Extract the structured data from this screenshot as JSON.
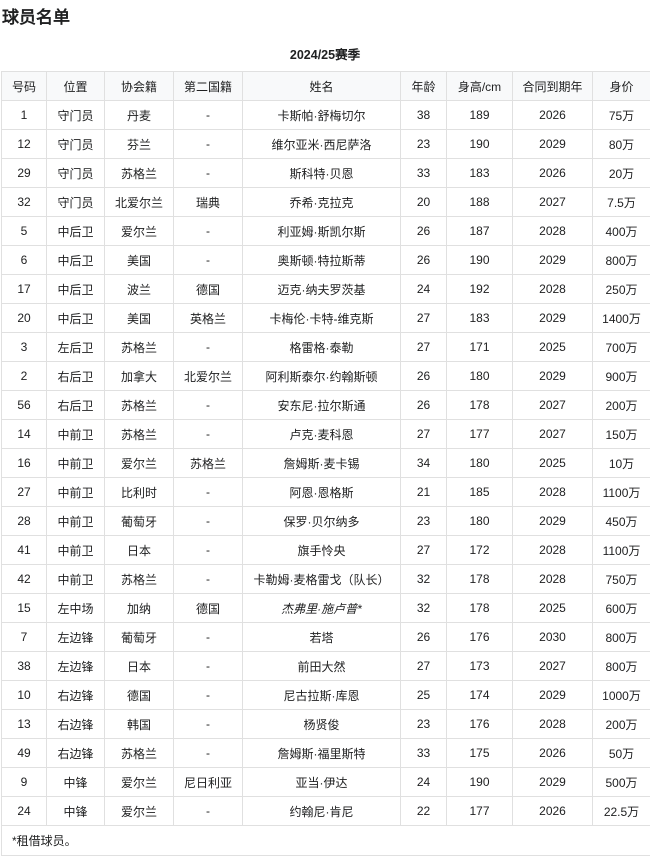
{
  "title": "球员名单",
  "caption": "2024/25赛季",
  "columns": [
    "号码",
    "位置",
    "协会籍",
    "第二国籍",
    "姓名",
    "年龄",
    "身高/cm",
    "合同到期年",
    "身价"
  ],
  "rows": [
    {
      "no": "1",
      "pos": "守门员",
      "nat": "丹麦",
      "nat2": "-",
      "name": "卡斯帕·舒梅切尔",
      "age": "38",
      "height": "189",
      "contract": "2026",
      "value": "75万"
    },
    {
      "no": "12",
      "pos": "守门员",
      "nat": "芬兰",
      "nat2": "-",
      "name": "维尔亚米·西尼萨洛",
      "age": "23",
      "height": "190",
      "contract": "2029",
      "value": "80万"
    },
    {
      "no": "29",
      "pos": "守门员",
      "nat": "苏格兰",
      "nat2": "-",
      "name": "斯科特·贝恩",
      "age": "33",
      "height": "183",
      "contract": "2026",
      "value": "20万"
    },
    {
      "no": "32",
      "pos": "守门员",
      "nat": "北爱尔兰",
      "nat2": "瑞典",
      "name": "乔希·克拉克",
      "age": "20",
      "height": "188",
      "contract": "2027",
      "value": "7.5万"
    },
    {
      "no": "5",
      "pos": "中后卫",
      "nat": "爱尔兰",
      "nat2": "-",
      "name": "利亚姆·斯凯尔斯",
      "age": "26",
      "height": "187",
      "contract": "2028",
      "value": "400万"
    },
    {
      "no": "6",
      "pos": "中后卫",
      "nat": "美国",
      "nat2": "-",
      "name": "奥斯顿·特拉斯蒂",
      "age": "26",
      "height": "190",
      "contract": "2029",
      "value": "800万"
    },
    {
      "no": "17",
      "pos": "中后卫",
      "nat": "波兰",
      "nat2": "德国",
      "name": "迈克·纳夫罗茨基",
      "age": "24",
      "height": "192",
      "contract": "2028",
      "value": "250万"
    },
    {
      "no": "20",
      "pos": "中后卫",
      "nat": "美国",
      "nat2": "英格兰",
      "name": "卡梅伦·卡特-维克斯",
      "age": "27",
      "height": "183",
      "contract": "2029",
      "value": "1400万"
    },
    {
      "no": "3",
      "pos": "左后卫",
      "nat": "苏格兰",
      "nat2": "-",
      "name": "格雷格·泰勒",
      "age": "27",
      "height": "171",
      "contract": "2025",
      "value": "700万"
    },
    {
      "no": "2",
      "pos": "右后卫",
      "nat": "加拿大",
      "nat2": "北爱尔兰",
      "name": "阿利斯泰尔·约翰斯顿",
      "age": "26",
      "height": "180",
      "contract": "2029",
      "value": "900万"
    },
    {
      "no": "56",
      "pos": "右后卫",
      "nat": "苏格兰",
      "nat2": "-",
      "name": "安东尼·拉尔斯通",
      "age": "26",
      "height": "178",
      "contract": "2027",
      "value": "200万"
    },
    {
      "no": "14",
      "pos": "中前卫",
      "nat": "苏格兰",
      "nat2": "-",
      "name": "卢克·麦科恩",
      "age": "27",
      "height": "177",
      "contract": "2027",
      "value": "150万"
    },
    {
      "no": "16",
      "pos": "中前卫",
      "nat": "爱尔兰",
      "nat2": "苏格兰",
      "name": "詹姆斯·麦卡锡",
      "age": "34",
      "height": "180",
      "contract": "2025",
      "value": "10万"
    },
    {
      "no": "27",
      "pos": "中前卫",
      "nat": "比利时",
      "nat2": "-",
      "name": "阿恩·恩格斯",
      "age": "21",
      "height": "185",
      "contract": "2028",
      "value": "1100万"
    },
    {
      "no": "28",
      "pos": "中前卫",
      "nat": "葡萄牙",
      "nat2": "-",
      "name": "保罗·贝尔纳多",
      "age": "23",
      "height": "180",
      "contract": "2029",
      "value": "450万"
    },
    {
      "no": "41",
      "pos": "中前卫",
      "nat": "日本",
      "nat2": "-",
      "name": "旗手怜央",
      "age": "27",
      "height": "172",
      "contract": "2028",
      "value": "1100万"
    },
    {
      "no": "42",
      "pos": "中前卫",
      "nat": "苏格兰",
      "nat2": "-",
      "name": "卡勒姆·麦格雷戈（队长）",
      "age": "32",
      "height": "178",
      "contract": "2028",
      "value": "750万"
    },
    {
      "no": "15",
      "pos": "左中场",
      "nat": "加纳",
      "nat2": "德国",
      "name": "杰弗里·施卢普*",
      "age": "32",
      "height": "178",
      "contract": "2025",
      "value": "600万",
      "loan": true
    },
    {
      "no": "7",
      "pos": "左边锋",
      "nat": "葡萄牙",
      "nat2": "-",
      "name": "若塔",
      "age": "26",
      "height": "176",
      "contract": "2030",
      "value": "800万"
    },
    {
      "no": "38",
      "pos": "左边锋",
      "nat": "日本",
      "nat2": "-",
      "name": "前田大然",
      "age": "27",
      "height": "173",
      "contract": "2027",
      "value": "800万"
    },
    {
      "no": "10",
      "pos": "右边锋",
      "nat": "德国",
      "nat2": "-",
      "name": "尼古拉斯·库恩",
      "age": "25",
      "height": "174",
      "contract": "2029",
      "value": "1000万"
    },
    {
      "no": "13",
      "pos": "右边锋",
      "nat": "韩国",
      "nat2": "-",
      "name": "杨贤俊",
      "age": "23",
      "height": "176",
      "contract": "2028",
      "value": "200万"
    },
    {
      "no": "49",
      "pos": "右边锋",
      "nat": "苏格兰",
      "nat2": "-",
      "name": "詹姆斯·福里斯特",
      "age": "33",
      "height": "175",
      "contract": "2026",
      "value": "50万"
    },
    {
      "no": "9",
      "pos": "中锋",
      "nat": "爱尔兰",
      "nat2": "尼日利亚",
      "name": "亚当·伊达",
      "age": "24",
      "height": "190",
      "contract": "2029",
      "value": "500万"
    },
    {
      "no": "24",
      "pos": "中锋",
      "nat": "爱尔兰",
      "nat2": "-",
      "name": "约翰尼·肯尼",
      "age": "22",
      "height": "177",
      "contract": "2026",
      "value": "22.5万"
    }
  ],
  "footnote": "*租借球员。"
}
